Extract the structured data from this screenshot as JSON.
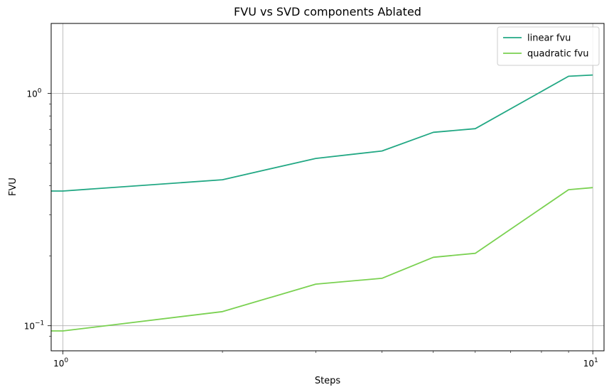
{
  "chart_data": {
    "type": "line",
    "title": "FVU vs SVD components Ablated",
    "xlabel": "Steps",
    "ylabel": "FVU",
    "xscale": "log",
    "yscale": "log",
    "xlim": [
      0.95,
      10.5
    ],
    "ylim": [
      0.078,
      2.0
    ],
    "grid": true,
    "legend_position": "top-right",
    "x": [
      0.95,
      1,
      2,
      3,
      4,
      5,
      6,
      9,
      10
    ],
    "series": [
      {
        "name": "linear fvu",
        "color": "#22a884",
        "values": [
          0.38,
          0.38,
          0.425,
          0.525,
          0.565,
          0.68,
          0.705,
          1.185,
          1.2
        ]
      },
      {
        "name": "quadratic fvu",
        "color": "#7ad151",
        "values": [
          0.095,
          0.095,
          0.115,
          0.151,
          0.16,
          0.197,
          0.205,
          0.385,
          0.393
        ]
      }
    ],
    "x_major_ticks": [
      {
        "value": 1,
        "base": "10",
        "exp": "0"
      },
      {
        "value": 10,
        "base": "10",
        "exp": "1"
      }
    ],
    "y_major_ticks": [
      {
        "value": 0.1,
        "base": "10",
        "exp": "−1"
      },
      {
        "value": 1,
        "base": "10",
        "exp": "0"
      }
    ]
  }
}
